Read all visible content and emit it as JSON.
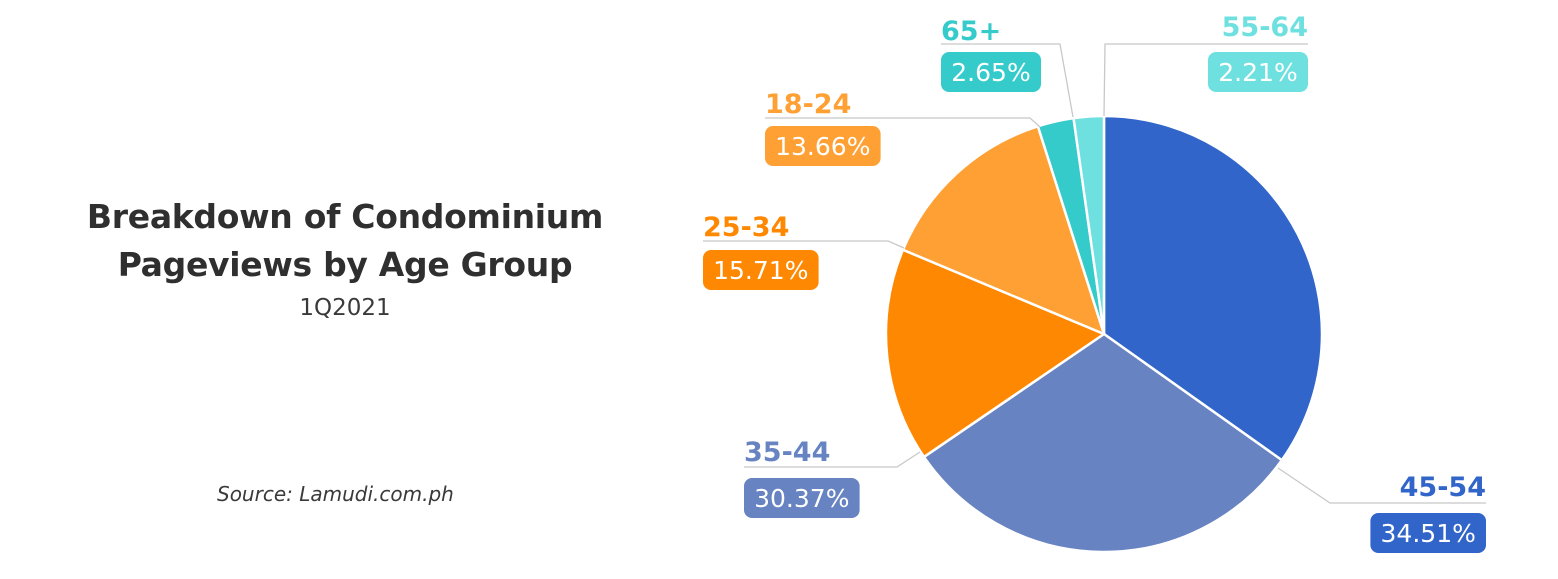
{
  "title_lines": [
    "Breakdown of Condominium",
    "Pageviews by Age Group"
  ],
  "subtitle": "1Q2021",
  "source": "Source: Lamudi.com.ph",
  "chart_data": {
    "type": "pie",
    "title": "Breakdown of Condominium Pageviews by Age Group",
    "subtitle": "1Q2021",
    "slices": [
      {
        "label": "45-54",
        "value": 34.51,
        "display": "34.51%",
        "color": "#3165c9"
      },
      {
        "label": "35-44",
        "value": 30.37,
        "display": "30.37%",
        "color": "#6783c1"
      },
      {
        "label": "25-34",
        "value": 15.71,
        "display": "15.71%",
        "color": "#fe8802"
      },
      {
        "label": "18-24",
        "value": 13.66,
        "display": "13.66%",
        "color": "#fea033"
      },
      {
        "label": "65+",
        "value": 2.65,
        "display": "2.65%",
        "color": "#35cbcb"
      },
      {
        "label": "55-64",
        "value": 2.21,
        "display": "2.21%",
        "color": "#6fe0e0"
      }
    ]
  }
}
